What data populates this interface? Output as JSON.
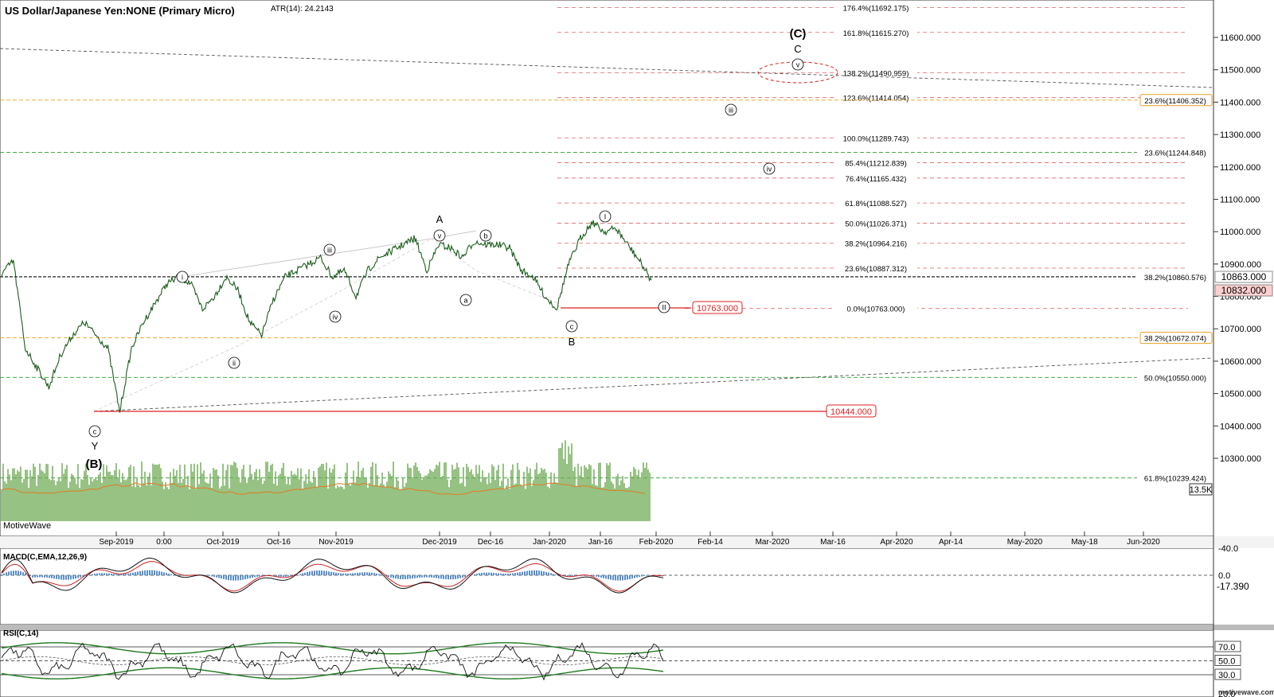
{
  "header": {
    "title": "US Dollar/Japanese Yen:NONE (Primary Micro)",
    "atr": "ATR(14): 24.2143"
  },
  "watermark_left": "MotiveWave",
  "watermark_right": "motivewave.com",
  "colors": {
    "price": "#1a5c1a",
    "fib_red": "#e06060",
    "fib_green": "#2aa02a",
    "fib_orange": "#e8a020",
    "support": "#dd2222",
    "volume": "#6aa84f",
    "volume_ma": "#e07b20",
    "macd": "#111111",
    "signal": "#cc2222",
    "hist": "#5b8fc9",
    "rsi_band": "#1f7a1f"
  },
  "chart_data": [
    {
      "type": "line",
      "title": "US Dollar/Japanese Yen:NONE (Primary Micro)",
      "x_axis_ticks": [
        "Sep-2019",
        "0:00",
        "Oct-2019",
        "Oct-16",
        "Nov-2019",
        "Dec-2019",
        "Dec-16",
        "Jan-2020",
        "Jan-16",
        "Feb-2020",
        "Feb-14",
        "Mar-2020",
        "Mar-16",
        "Apr-2020",
        "Apr-14",
        "May-2020",
        "May-18",
        "Jun-2020"
      ],
      "y_axis_ticks": [
        "11600.000",
        "11500.000",
        "11400.000",
        "11300.000",
        "11200.000",
        "11100.000",
        "11000.000",
        "10900.000",
        "10800.000",
        "10700.000",
        "10600.000",
        "10500.000",
        "10400.000",
        "10300.000"
      ],
      "ylim": [
        10150,
        11720
      ],
      "series": [
        {
          "x": [
            "Aug-20",
            "Aug-23",
            "Aug-26",
            "Aug-29",
            "Sep-02",
            "Sep-05",
            "Sep-08",
            "Sep-11",
            "Sep-14",
            "Sep-17",
            "Sep-20",
            "Sep-23",
            "Sep-26",
            "Sep-29",
            "Oct-02",
            "Oct-05",
            "Oct-08",
            "Oct-11",
            "Oct-14",
            "Oct-17",
            "Oct-20",
            "Oct-23",
            "Oct-26",
            "Oct-29",
            "Nov-01",
            "Nov-04",
            "Nov-07",
            "Nov-10",
            "Nov-13",
            "Nov-16",
            "Nov-19",
            "Nov-22",
            "Nov-25",
            "Nov-28",
            "Dec-01",
            "Dec-04",
            "Dec-07",
            "Dec-10",
            "Dec-13",
            "Dec-16",
            "Dec-19",
            "Dec-22",
            "Dec-25",
            "Dec-28",
            "Dec-31",
            "Jan-03",
            "Jan-06",
            "Jan-09",
            "Jan-12",
            "Jan-15",
            "Jan-18",
            "Jan-21",
            "Jan-24",
            "Jan-27",
            "Jan-30",
            "Feb-01"
          ],
          "values": [
            10870,
            10910,
            10640,
            10580,
            10520,
            10620,
            10680,
            10720,
            10680,
            10640,
            10444,
            10640,
            10720,
            10780,
            10840,
            10860,
            10840,
            10760,
            10800,
            10860,
            10820,
            10720,
            10680,
            10790,
            10860,
            10880,
            10900,
            10920,
            10860,
            10880,
            10800,
            10880,
            10920,
            10940,
            10960,
            10980,
            10880,
            10960,
            10950,
            10920,
            10970,
            10960,
            10960,
            10950,
            10880,
            10860,
            10800,
            10763,
            10900,
            10980,
            11030,
            11000,
            11010,
            10960,
            10910,
            10850
          ]
        }
      ],
      "horizontal_levels": [
        {
          "label": "176.4%(11692.175)",
          "value": 11692.175
        },
        {
          "label": "161.8%(11615.270)",
          "value": 11615.27
        },
        {
          "label": "138.2%(11490.959)",
          "value": 11490.959
        },
        {
          "label": "123.6%(11414.054)",
          "value": 11414.054
        },
        {
          "label": "100.0%(11289.743)",
          "value": 11289.743
        },
        {
          "label": "85.4%(11212.839)",
          "value": 11212.839
        },
        {
          "label": "76.4%(11165.432)",
          "value": 11165.432
        },
        {
          "label": "61.8%(11088.527)",
          "value": 11088.527
        },
        {
          "label": "50.0%(11026.371)",
          "value": 11026.371
        },
        {
          "label": "38.2%(10964.216)",
          "value": 10964.216
        },
        {
          "label": "23.6%(10887.312)",
          "value": 10887.312
        },
        {
          "label": "0.0%(10763.000)",
          "value": 10763.0
        }
      ],
      "right_levels": [
        {
          "label": "23.6%(11406.352)",
          "value": 11406.352
        },
        {
          "label": "23.6%(11244.848)",
          "value": 11244.848
        },
        {
          "label": "38.2%(10860.576)",
          "value": 10860.576
        },
        {
          "label": "38.2%(10672.074)",
          "value": 10672.074
        },
        {
          "label": "50.0%(10550.000)",
          "value": 10550.0
        },
        {
          "label": "61.8%(10239.424)",
          "value": 10239.424
        }
      ],
      "price_tags": [
        "10863.000",
        "10832.000"
      ],
      "support_labels": [
        "10763.000",
        "10444.000"
      ],
      "volume_tag": "13.5K",
      "wave_labels": {
        "big_c": "(C)",
        "c": "C",
        "big_b": "(B)",
        "y": "Y",
        "a": "A",
        "b": "B",
        "i_small": "i",
        "ii_small": "ii",
        "iii_small": "iii",
        "iv_small": "iv",
        "v_small": "v",
        "a_small": "a",
        "b_small": "b",
        "c_small": "c",
        "i_roman": "I",
        "ii_roman": "II"
      }
    },
    {
      "type": "line",
      "title": "MACD(C,EMA,12,26,9)",
      "y_axis_ticks": [
        "0.0",
        "-40.0"
      ],
      "last_value": "-17.390"
    },
    {
      "type": "line",
      "title": "RSI(C,14)",
      "y_axis_ticks": [
        "70.0",
        "50.0",
        "30.0",
        "20.0"
      ]
    }
  ]
}
